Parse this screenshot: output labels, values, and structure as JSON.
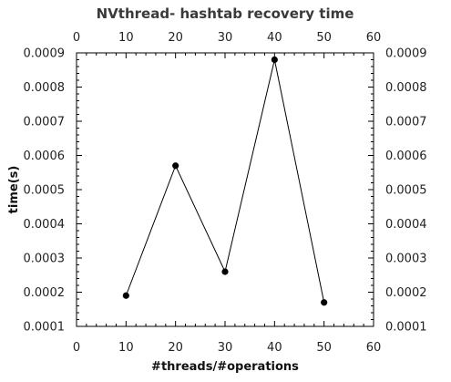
{
  "chart_data": {
    "type": "line",
    "title": "NVthread- hashtab recovery time",
    "xlabel": "#threads/#operations",
    "ylabel": "time(s)",
    "xlim": [
      0,
      60
    ],
    "ylim": [
      0.0001,
      0.0009
    ],
    "x_ticks": [
      "0",
      "10",
      "20",
      "30",
      "40",
      "50",
      "60"
    ],
    "y_ticks": [
      "0.0001",
      "0.0002",
      "0.0003",
      "0.0004",
      "0.0005",
      "0.0006",
      "0.0007",
      "0.0008",
      "0.0009"
    ],
    "x": [
      10,
      20,
      30,
      40,
      50
    ],
    "series": [
      {
        "values": [
          0.00019,
          0.00057,
          0.00026,
          0.00088,
          0.00017
        ]
      }
    ],
    "grid": false,
    "mirrored_axes": true,
    "line_color": "#000000",
    "marker_color": "#000000"
  }
}
